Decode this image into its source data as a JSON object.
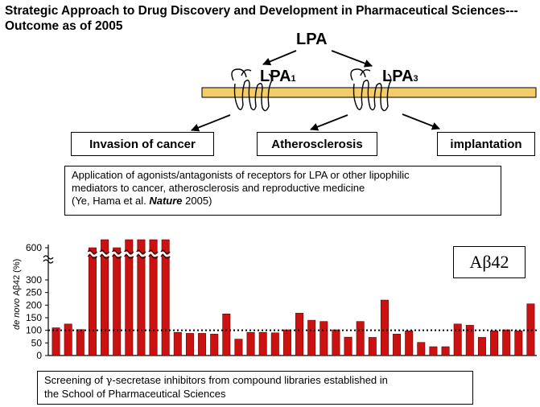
{
  "title": "Strategic Approach to Drug Discovery and Development in Pharmaceutical Sciences---Outcome as of 2005",
  "diagram": {
    "ligand": "LPA",
    "receptor1": "LPA",
    "receptor1_sub": "1",
    "receptor3": "LPA",
    "receptor3_sub": "3",
    "outcome1": "Invasion of cancer",
    "outcome2": "Atherosclerosis",
    "outcome3": "implantation",
    "membrane_color": "#f3cd6a"
  },
  "application": {
    "line1": "Application of agonists/antagonists of receptors for LPA or other lipophilic",
    "line2": "mediators to cancer, atherosclerosis and reproductive medicine",
    "cite_prefix": "(Ye, Hama et al. ",
    "cite_journal": "Nature",
    "cite_year": " 2005)"
  },
  "chart_data": {
    "type": "bar",
    "ylabel_italic": "de novo",
    "ylabel": "Aβ42 (%)",
    "legend": "Aβ42",
    "yticks": [
      0,
      50,
      100,
      150,
      200,
      250,
      300,
      600
    ],
    "ybreak_below": 600,
    "reference_line": 100,
    "bar_color": "#cc1111",
    "values": [
      110,
      125,
      103,
      620,
      640,
      585,
      640,
      640,
      640,
      640,
      92,
      88,
      88,
      85,
      165,
      65,
      92,
      92,
      90,
      102,
      168,
      140,
      135,
      102,
      73,
      135,
      72,
      220,
      85,
      98,
      52,
      35,
      35,
      125,
      120,
      72,
      98,
      102,
      98,
      205
    ]
  },
  "screening": {
    "line1_prefix": "Screening of ",
    "gamma": "γ",
    "line1_suffix": "-secretase inhibitors from compound libraries established in",
    "line2": "the School of Pharmaceutical Sciences"
  }
}
